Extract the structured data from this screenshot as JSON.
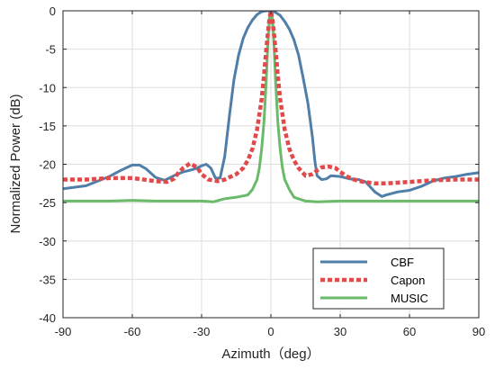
{
  "chart_data": {
    "type": "line",
    "title": "",
    "xlabel": "Azimuth（deg）",
    "ylabel": "Normalized Power (dB)",
    "xlim": [
      -90,
      90
    ],
    "ylim": [
      -40,
      0
    ],
    "xticks": [
      -90,
      -60,
      -30,
      0,
      30,
      60,
      90
    ],
    "yticks": [
      0,
      -5,
      -10,
      -15,
      -20,
      -25,
      -30,
      -35,
      -40
    ],
    "grid": true,
    "legend_position": "bottom-right",
    "series": [
      {
        "name": "CBF",
        "color": "#4f7fa8",
        "style": "solid",
        "x": [
          -90,
          -80,
          -70,
          -65,
          -60,
          -57,
          -54,
          -50,
          -46,
          -42,
          -38,
          -34,
          -32,
          -30,
          -28,
          -26,
          -24,
          -22,
          -20,
          -18,
          -16,
          -14,
          -12,
          -10,
          -8,
          -6,
          -4,
          -2,
          0,
          2,
          4,
          6,
          8,
          10,
          12,
          14,
          16,
          18,
          19,
          20,
          22,
          24,
          26,
          30,
          34,
          38,
          41,
          45,
          48,
          50,
          55,
          60,
          65,
          70,
          75,
          80,
          85,
          90
        ],
        "y": [
          -23.2,
          -22.8,
          -21.6,
          -20.8,
          -20.1,
          -20.1,
          -20.6,
          -21.7,
          -22.1,
          -21.5,
          -21.0,
          -20.7,
          -20.5,
          -20.2,
          -20.0,
          -20.5,
          -21.8,
          -21.8,
          -19.0,
          -13.8,
          -9.0,
          -5.8,
          -3.6,
          -2.2,
          -1.2,
          -0.5,
          -0.1,
          0.0,
          0.0,
          -0.2,
          -0.6,
          -1.4,
          -2.4,
          -3.8,
          -5.8,
          -8.8,
          -12.0,
          -16.5,
          -19.5,
          -21.5,
          -22.0,
          -21.9,
          -21.5,
          -21.6,
          -21.9,
          -22.0,
          -22.3,
          -23.6,
          -24.2,
          -24.0,
          -23.6,
          -23.4,
          -22.9,
          -22.2,
          -21.8,
          -21.6,
          -21.3,
          -21.1
        ]
      },
      {
        "name": "Capon",
        "color": "#e04a4a",
        "style": "dotted",
        "x": [
          -90,
          -80,
          -70,
          -60,
          -55,
          -50,
          -45,
          -42,
          -40,
          -38,
          -35,
          -32,
          -30,
          -27,
          -25,
          -23,
          -20,
          -18,
          -15,
          -12,
          -10,
          -8,
          -6,
          -4,
          -3,
          -2,
          -1,
          -0.5,
          0,
          0.5,
          1,
          2,
          3,
          4,
          6,
          8,
          10,
          12,
          15,
          18,
          20,
          22,
          25,
          28,
          30,
          33,
          36,
          40,
          45,
          50,
          60,
          70,
          80,
          90
        ],
        "y": [
          -22.0,
          -22.0,
          -21.8,
          -21.8,
          -22.0,
          -22.2,
          -22.3,
          -21.9,
          -21.1,
          -20.5,
          -19.9,
          -20.4,
          -21.3,
          -22.0,
          -22.1,
          -22.2,
          -22.0,
          -21.7,
          -21.3,
          -20.5,
          -19.5,
          -18.0,
          -15.5,
          -11.5,
          -8.5,
          -5.0,
          -2.0,
          -0.8,
          0.0,
          -0.8,
          -2.0,
          -5.0,
          -8.5,
          -11.5,
          -15.5,
          -18.0,
          -19.5,
          -20.5,
          -21.5,
          -21.3,
          -20.8,
          -20.4,
          -20.3,
          -20.5,
          -21.0,
          -21.6,
          -22.0,
          -22.3,
          -22.5,
          -22.5,
          -22.3,
          -22.1,
          -22.0,
          -22.0
        ]
      },
      {
        "name": "MUSIC",
        "color": "#6aba6a",
        "style": "solid",
        "x": [
          -90,
          -70,
          -60,
          -50,
          -40,
          -30,
          -25,
          -20,
          -15,
          -10,
          -8,
          -6,
          -5,
          -4,
          -3,
          -2,
          -1.5,
          -1,
          -0.5,
          0,
          0.5,
          1,
          1.5,
          2,
          3,
          4,
          5,
          6,
          8,
          10,
          15,
          20,
          30,
          40,
          50,
          60,
          70,
          90
        ],
        "y": [
          -24.8,
          -24.8,
          -24.7,
          -24.8,
          -24.8,
          -24.8,
          -24.9,
          -24.5,
          -24.3,
          -24.0,
          -23.3,
          -22.0,
          -20.5,
          -18.0,
          -14.5,
          -9.0,
          -5.5,
          -2.5,
          -0.6,
          0.0,
          -0.6,
          -2.5,
          -5.5,
          -9.0,
          -14.5,
          -18.0,
          -20.5,
          -22.0,
          -23.3,
          -24.3,
          -24.8,
          -24.9,
          -24.8,
          -24.8,
          -24.8,
          -24.8,
          -24.8,
          -24.8
        ]
      }
    ]
  }
}
